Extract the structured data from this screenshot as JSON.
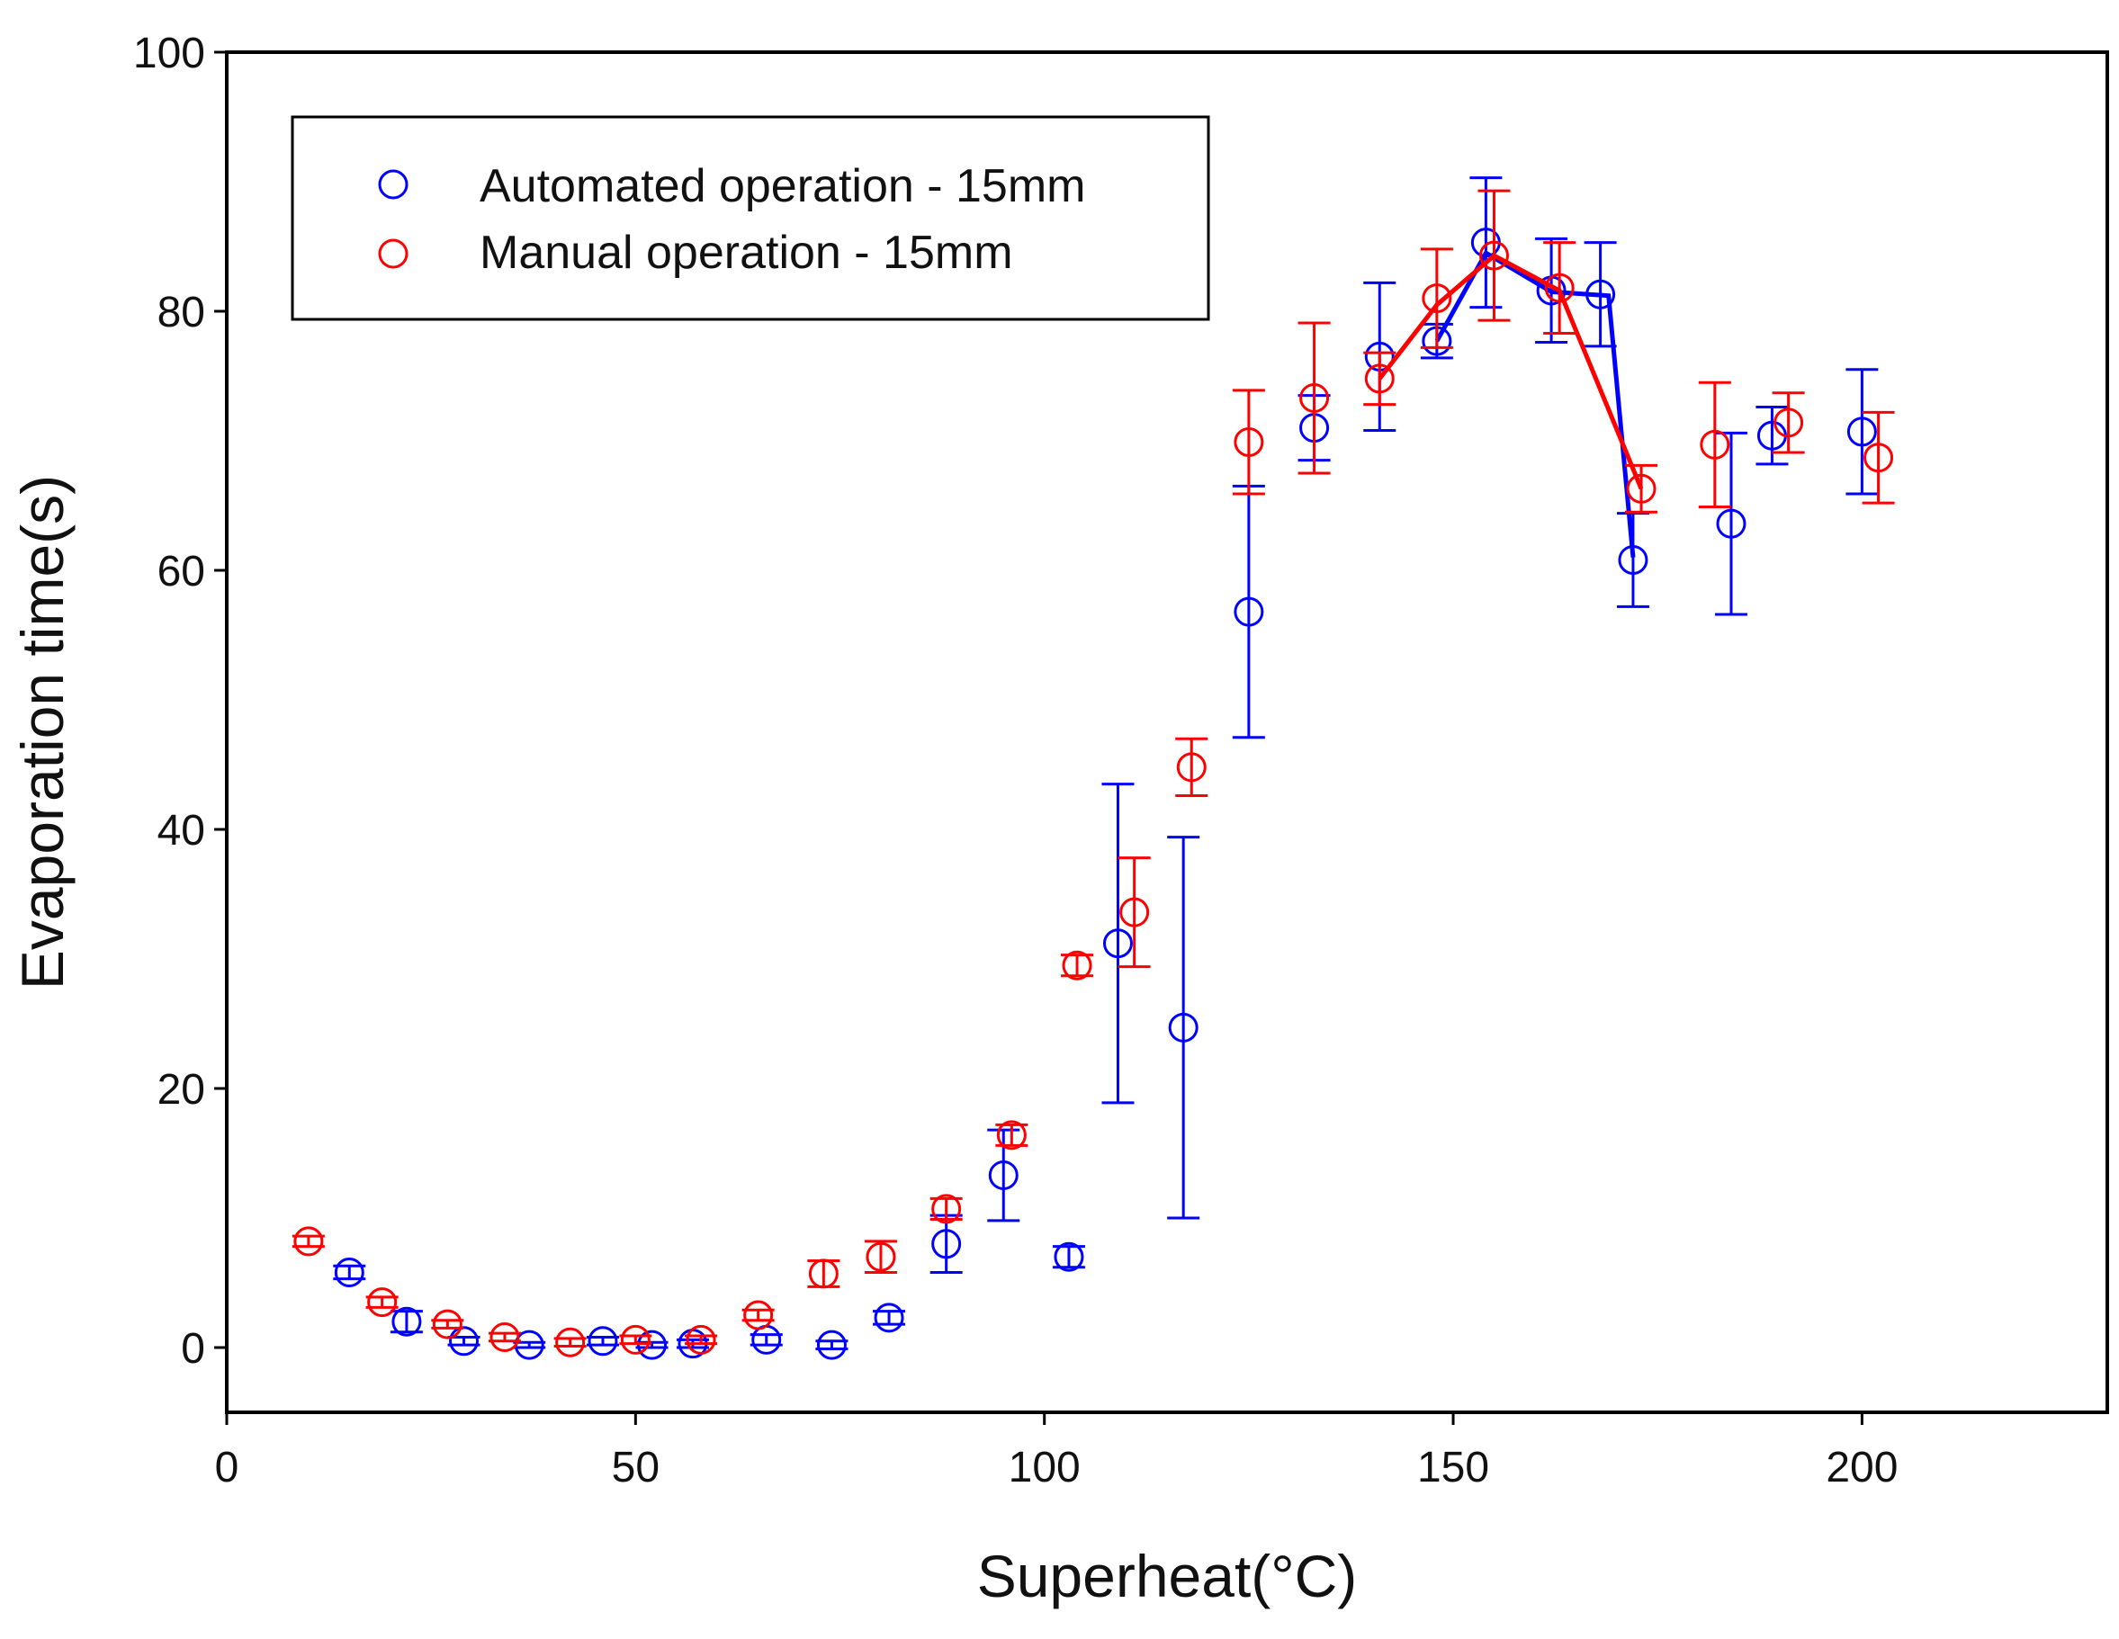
{
  "chart_data": {
    "type": "scatter",
    "xlabel": "Superheat(°C)",
    "ylabel": "Evaporation time(s)",
    "xlim": [
      0,
      230
    ],
    "ylim": [
      -5,
      100
    ],
    "xticks": [
      0,
      50,
      100,
      150,
      200
    ],
    "yticks": [
      0,
      20,
      40,
      60,
      80,
      100
    ],
    "x_tick_labels": [
      "0",
      "50",
      "100",
      "150",
      "200"
    ],
    "y_tick_labels": [
      "0",
      "20",
      "40",
      "60",
      "80",
      "100"
    ],
    "legend_position": "top-left",
    "series": [
      {
        "name": "Automated operation - 15mm",
        "color": "#0000ff",
        "points": [
          {
            "x": 15,
            "y": 5.8,
            "err": 0.5
          },
          {
            "x": 22,
            "y": 2.0,
            "err": 0.8
          },
          {
            "x": 29,
            "y": 0.5,
            "err": 0.3
          },
          {
            "x": 37,
            "y": 0.2,
            "err": 0.2
          },
          {
            "x": 46,
            "y": 0.5,
            "err": 0.3
          },
          {
            "x": 52,
            "y": 0.2,
            "err": 0.2
          },
          {
            "x": 57,
            "y": 0.3,
            "err": 0.3
          },
          {
            "x": 66,
            "y": 0.6,
            "err": 0.4
          },
          {
            "x": 74,
            "y": 0.2,
            "err": 0.3
          },
          {
            "x": 81,
            "y": 2.3,
            "err": 0.5
          },
          {
            "x": 88,
            "y": 8.0,
            "err": 2.2
          },
          {
            "x": 95,
            "y": 13.3,
            "err": 3.5
          },
          {
            "x": 103,
            "y": 7.0,
            "err": 0.8
          },
          {
            "x": 109,
            "y": 31.2,
            "err": 12.3
          },
          {
            "x": 117,
            "y": 24.7,
            "err": 14.7
          },
          {
            "x": 125,
            "y": 56.8,
            "err": 9.7
          },
          {
            "x": 133,
            "y": 71.0,
            "err": 2.5
          },
          {
            "x": 141,
            "y": 76.5,
            "err": 5.7
          },
          {
            "x": 148,
            "y": 77.7,
            "err": 1.3
          },
          {
            "x": 154,
            "y": 85.3,
            "err": 5.0
          },
          {
            "x": 162,
            "y": 81.6,
            "err": 4.0
          },
          {
            "x": 168,
            "y": 81.3,
            "err": 4.0
          },
          {
            "x": 172,
            "y": 60.8,
            "err": 3.6
          },
          {
            "x": 184,
            "y": 63.6,
            "err": 7.0
          },
          {
            "x": 189,
            "y": 70.4,
            "err": 2.2
          },
          {
            "x": 200,
            "y": 70.7,
            "err": 4.8
          }
        ],
        "trend": [
          {
            "x": 148,
            "y": 77.7
          },
          {
            "x": 154,
            "y": 84.5
          },
          {
            "x": 162,
            "y": 81.5
          },
          {
            "x": 169,
            "y": 81.2
          },
          {
            "x": 172,
            "y": 61.0
          }
        ]
      },
      {
        "name": "Manual operation - 15mm",
        "color": "#ff0000",
        "points": [
          {
            "x": 10,
            "y": 8.2,
            "err": 0.4
          },
          {
            "x": 19,
            "y": 3.5,
            "err": 0.4
          },
          {
            "x": 27,
            "y": 1.8,
            "err": 0.3
          },
          {
            "x": 34,
            "y": 0.8,
            "err": 0.3
          },
          {
            "x": 42,
            "y": 0.4,
            "err": 0.3
          },
          {
            "x": 50,
            "y": 0.6,
            "err": 0.3
          },
          {
            "x": 58,
            "y": 0.6,
            "err": 0.3
          },
          {
            "x": 65,
            "y": 2.5,
            "err": 0.4
          },
          {
            "x": 73,
            "y": 5.7,
            "err": 1.0
          },
          {
            "x": 80,
            "y": 7.0,
            "err": 1.2
          },
          {
            "x": 88,
            "y": 10.7,
            "err": 0.8
          },
          {
            "x": 96,
            "y": 16.4,
            "err": 0.8
          },
          {
            "x": 104,
            "y": 29.5,
            "err": 0.8
          },
          {
            "x": 111,
            "y": 33.6,
            "err": 4.2
          },
          {
            "x": 118,
            "y": 44.8,
            "err": 2.2
          },
          {
            "x": 125,
            "y": 69.9,
            "err": 4.0
          },
          {
            "x": 133,
            "y": 73.3,
            "err": 5.8
          },
          {
            "x": 141,
            "y": 74.8,
            "err": 2.0
          },
          {
            "x": 148,
            "y": 81.0,
            "err": 3.8
          },
          {
            "x": 155,
            "y": 84.3,
            "err": 5.0
          },
          {
            "x": 163,
            "y": 81.8,
            "err": 3.5
          },
          {
            "x": 173,
            "y": 66.3,
            "err": 1.8
          },
          {
            "x": 182,
            "y": 69.7,
            "err": 4.8
          },
          {
            "x": 191,
            "y": 71.4,
            "err": 2.3
          },
          {
            "x": 202,
            "y": 68.7,
            "err": 3.5
          }
        ],
        "trend": [
          {
            "x": 141,
            "y": 74.8
          },
          {
            "x": 148,
            "y": 80.5
          },
          {
            "x": 155,
            "y": 84.3
          },
          {
            "x": 163,
            "y": 81.6
          },
          {
            "x": 173,
            "y": 66.3
          }
        ]
      }
    ]
  }
}
